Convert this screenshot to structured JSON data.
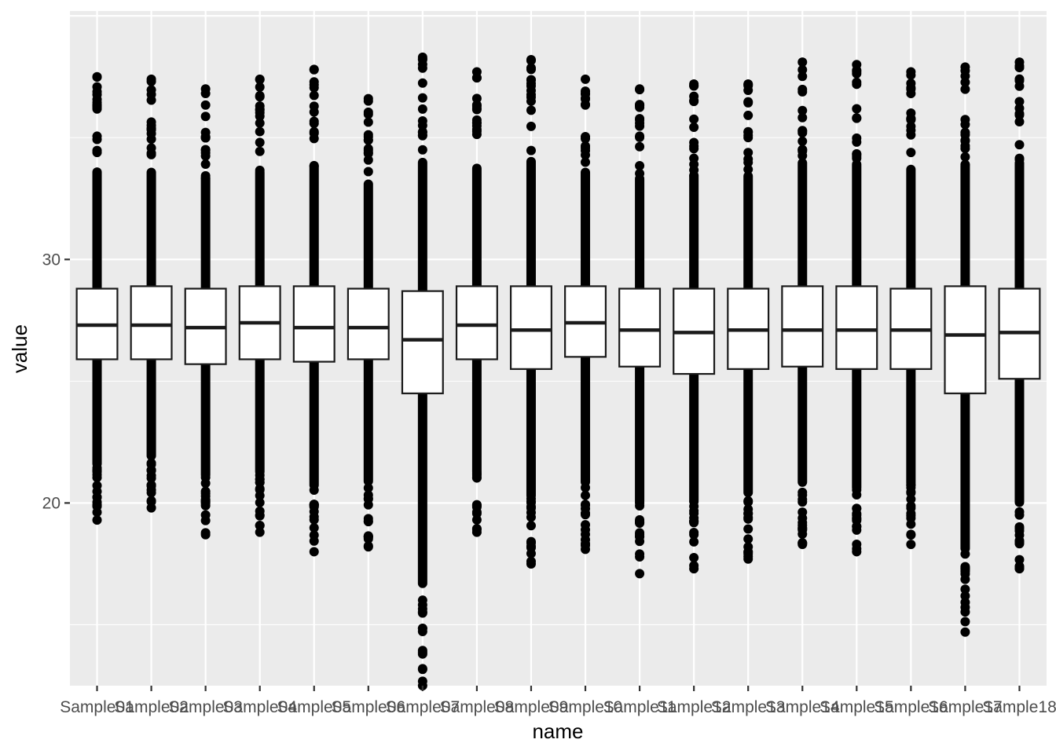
{
  "chart_data": {
    "type": "boxplot",
    "title": "",
    "xlabel": "name",
    "ylabel": "value",
    "ylim": [
      12.5,
      40.2
    ],
    "y_ticks": [
      20,
      30
    ],
    "grid": true,
    "legend": "none",
    "colors": {
      "panel_background": "#ebebeb",
      "grid": "#ffffff",
      "box_fill": "#ffffff",
      "box_stroke": "#1a1a1a",
      "points": "#000000",
      "tick_text": "#4d4d4d",
      "axis_title": "#000000"
    },
    "categories": [
      "Sample01",
      "Sample02",
      "Sample03",
      "Sample04",
      "Sample05",
      "Sample06",
      "Sample07",
      "Sample08",
      "Sample09",
      "Sample10",
      "Sample11",
      "Sample12",
      "Sample13",
      "Sample14",
      "Sample15",
      "Sample16",
      "Sample17",
      "Sample18"
    ],
    "boxes": [
      {
        "q1": 25.9,
        "median": 27.3,
        "q3": 28.8,
        "low": 19.3,
        "high": 37.5
      },
      {
        "q1": 25.9,
        "median": 27.3,
        "q3": 28.9,
        "low": 19.8,
        "high": 37.4
      },
      {
        "q1": 25.7,
        "median": 27.2,
        "q3": 28.8,
        "low": 18.7,
        "high": 37.0
      },
      {
        "q1": 25.9,
        "median": 27.4,
        "q3": 28.9,
        "low": 18.8,
        "high": 37.4
      },
      {
        "q1": 25.8,
        "median": 27.2,
        "q3": 28.9,
        "low": 18.0,
        "high": 37.8
      },
      {
        "q1": 25.9,
        "median": 27.2,
        "q3": 28.8,
        "low": 18.2,
        "high": 36.6
      },
      {
        "q1": 24.5,
        "median": 26.7,
        "q3": 28.7,
        "low": 12.5,
        "high": 38.3
      },
      {
        "q1": 25.9,
        "median": 27.3,
        "q3": 28.9,
        "low": 18.8,
        "high": 37.7
      },
      {
        "q1": 25.5,
        "median": 27.1,
        "q3": 28.9,
        "low": 17.5,
        "high": 38.2
      },
      {
        "q1": 26.0,
        "median": 27.4,
        "q3": 28.9,
        "low": 18.1,
        "high": 37.4
      },
      {
        "q1": 25.6,
        "median": 27.1,
        "q3": 28.8,
        "low": 17.1,
        "high": 37.0
      },
      {
        "q1": 25.3,
        "median": 27.0,
        "q3": 28.8,
        "low": 17.3,
        "high": 37.2
      },
      {
        "q1": 25.5,
        "median": 27.1,
        "q3": 28.8,
        "low": 17.7,
        "high": 37.2
      },
      {
        "q1": 25.6,
        "median": 27.1,
        "q3": 28.9,
        "low": 18.3,
        "high": 38.1
      },
      {
        "q1": 25.5,
        "median": 27.1,
        "q3": 28.9,
        "low": 18.0,
        "high": 38.0
      },
      {
        "q1": 25.5,
        "median": 27.1,
        "q3": 28.8,
        "low": 18.3,
        "high": 37.7
      },
      {
        "q1": 24.5,
        "median": 26.9,
        "q3": 28.9,
        "low": 14.7,
        "high": 37.9
      },
      {
        "q1": 25.1,
        "median": 27.0,
        "q3": 28.8,
        "low": 17.3,
        "high": 38.1
      }
    ]
  }
}
